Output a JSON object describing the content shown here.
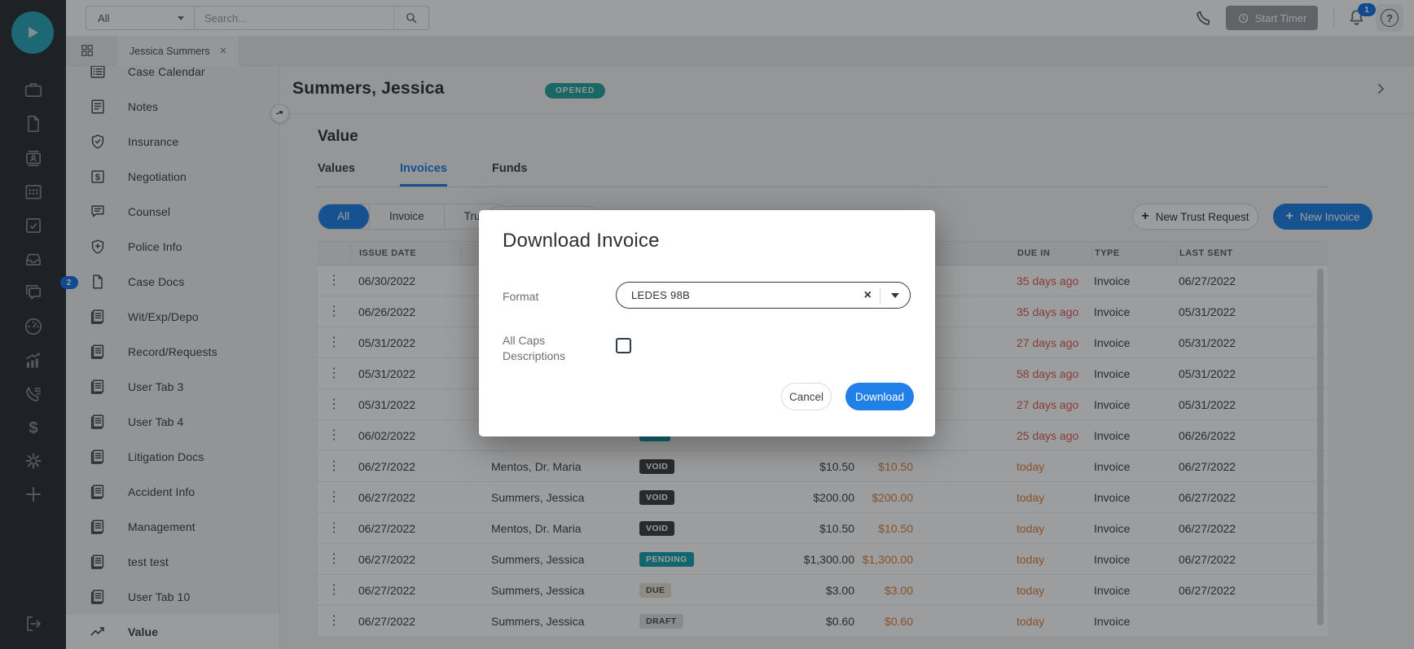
{
  "colors": {
    "accent_blue": "#2180e8",
    "badge_blue": "#1a73e8",
    "logo_teal": "#2ba7b9",
    "opened_teal": "#27a5a2",
    "teal": "#1aa3b0",
    "red": "#d95f5c",
    "orange": "#dd8040",
    "void_dark": "#3d4045"
  },
  "topbar": {
    "scope_value": "All",
    "search_placeholder": "Search...",
    "start_timer_label": "Start Timer",
    "notification_count": "1",
    "help_glyph": "?"
  },
  "tabstrip": {
    "active_tab": "Jessica Summers",
    "close_glyph": "×"
  },
  "rail": {
    "icons": [
      "briefcase",
      "file",
      "id-card",
      "calendar",
      "task",
      "inbox",
      "chat",
      "gauge",
      "chart-growth",
      "phone-log",
      "dollar",
      "gear",
      "plus"
    ],
    "chat_badge": "2"
  },
  "sidebar": {
    "items": [
      {
        "label": "Case Calendar",
        "icon": "list-card"
      },
      {
        "label": "Notes",
        "icon": "note"
      },
      {
        "label": "Insurance",
        "icon": "shield-check"
      },
      {
        "label": "Negotiation",
        "icon": "dollar-square"
      },
      {
        "label": "Counsel",
        "icon": "chat-lines"
      },
      {
        "label": "Police Info",
        "icon": "shield-cross"
      },
      {
        "label": "Case Docs",
        "icon": "doc"
      },
      {
        "label": "Wit/Exp/Depo",
        "icon": "doc-lines"
      },
      {
        "label": "Record/Requests",
        "icon": "doc-lines"
      },
      {
        "label": "User Tab 3",
        "icon": "doc-lines"
      },
      {
        "label": "User Tab 4",
        "icon": "doc-lines"
      },
      {
        "label": "Litigation Docs",
        "icon": "doc-lines"
      },
      {
        "label": "Accident Info",
        "icon": "doc-lines"
      },
      {
        "label": "Management",
        "icon": "doc-lines"
      },
      {
        "label": "test test",
        "icon": "doc-lines"
      },
      {
        "label": "User Tab 10",
        "icon": "doc-lines"
      },
      {
        "label": "Value",
        "icon": "trend",
        "active": true
      }
    ]
  },
  "case_header": {
    "name": "Summers, Jessica",
    "status_badge": "OPENED"
  },
  "value_section": {
    "title": "Value",
    "tabs": [
      {
        "label": "Values"
      },
      {
        "label": "Invoices",
        "active": true
      },
      {
        "label": "Funds"
      }
    ],
    "segments": [
      {
        "label": "All",
        "active": true
      },
      {
        "label": "Invoice"
      },
      {
        "label": "Trust"
      }
    ],
    "new_trust_request_label": "New Trust Request",
    "new_invoice_label": "New Invoice",
    "plus_glyph": "+"
  },
  "invoice_table": {
    "headers": {
      "issue_date": "ISSUE DATE",
      "due_in": "DUE IN",
      "type": "TYPE",
      "last_sent": "LAST SENT"
    },
    "kebab_glyph": "⋮",
    "rows": [
      {
        "issue_date": "06/30/2022",
        "recipient": "",
        "status": "",
        "status_style": null,
        "amount": "",
        "balance": "",
        "due_in": "35 days ago",
        "due_style": "red",
        "type": "Invoice",
        "last_sent": "06/27/2022"
      },
      {
        "issue_date": "06/26/2022",
        "recipient": "",
        "status": "",
        "status_style": null,
        "amount": "",
        "balance": "",
        "due_in": "35 days ago",
        "due_style": "red",
        "type": "Invoice",
        "last_sent": "05/31/2022"
      },
      {
        "issue_date": "05/31/2022",
        "recipient": "",
        "status": "",
        "status_style": null,
        "amount": "",
        "balance": "",
        "due_in": "27 days ago",
        "due_style": "red",
        "type": "Invoice",
        "last_sent": "05/31/2022"
      },
      {
        "issue_date": "05/31/2022",
        "recipient": "",
        "status": "",
        "status_style": null,
        "amount": "",
        "balance": "",
        "due_in": "58 days ago",
        "due_style": "red",
        "type": "Invoice",
        "last_sent": "05/31/2022"
      },
      {
        "issue_date": "05/31/2022",
        "recipient": "",
        "status": "",
        "status_style": null,
        "amount": "",
        "balance": "",
        "due_in": "27 days ago",
        "due_style": "red",
        "type": "Invoice",
        "last_sent": "05/31/2022"
      },
      {
        "issue_date": "06/02/2022",
        "recipient": "",
        "status": "",
        "status_style": "teal",
        "amount": "",
        "balance": "",
        "due_in": "25 days ago",
        "due_style": "red",
        "type": "Invoice",
        "last_sent": "06/26/2022"
      },
      {
        "issue_date": "06/27/2022",
        "recipient": "Mentos, Dr. Maria",
        "status": "VOID",
        "status_style": "dark",
        "amount": "$10.50",
        "balance": "$10.50",
        "due_in": "today",
        "due_style": "orange",
        "type": "Invoice",
        "last_sent": "06/27/2022"
      },
      {
        "issue_date": "06/27/2022",
        "recipient": "Summers, Jessica",
        "status": "VOID",
        "status_style": "dark",
        "amount": "$200.00",
        "balance": "$200.00",
        "due_in": "today",
        "due_style": "orange",
        "type": "Invoice",
        "last_sent": "06/27/2022"
      },
      {
        "issue_date": "06/27/2022",
        "recipient": "Mentos, Dr. Maria",
        "status": "VOID",
        "status_style": "dark",
        "amount": "$10.50",
        "balance": "$10.50",
        "due_in": "today",
        "due_style": "orange",
        "type": "Invoice",
        "last_sent": "06/27/2022"
      },
      {
        "issue_date": "06/27/2022",
        "recipient": "Summers, Jessica",
        "status": "PENDING",
        "status_style": "teal",
        "amount": "$1,300.00",
        "balance": "$1,300.00",
        "due_in": "today",
        "due_style": "orange",
        "type": "Invoice",
        "last_sent": "06/27/2022"
      },
      {
        "issue_date": "06/27/2022",
        "recipient": "Summers, Jessica",
        "status": "DUE",
        "status_style": "tan",
        "amount": "$3.00",
        "balance": "$3.00",
        "due_in": "today",
        "due_style": "orange",
        "type": "Invoice",
        "last_sent": "06/27/2022"
      },
      {
        "issue_date": "06/27/2022",
        "recipient": "Summers, Jessica",
        "status": "DRAFT",
        "status_style": "gray",
        "amount": "$0.60",
        "balance": "$0.60",
        "due_in": "today",
        "due_style": "orange",
        "type": "Invoice",
        "last_sent": ""
      }
    ]
  },
  "modal": {
    "title": "Download Invoice",
    "format_label": "Format",
    "format_value": "LEDES 98B",
    "clear_glyph": "×",
    "all_caps_label": "All Caps Descriptions",
    "cancel_label": "Cancel",
    "download_label": "Download"
  }
}
